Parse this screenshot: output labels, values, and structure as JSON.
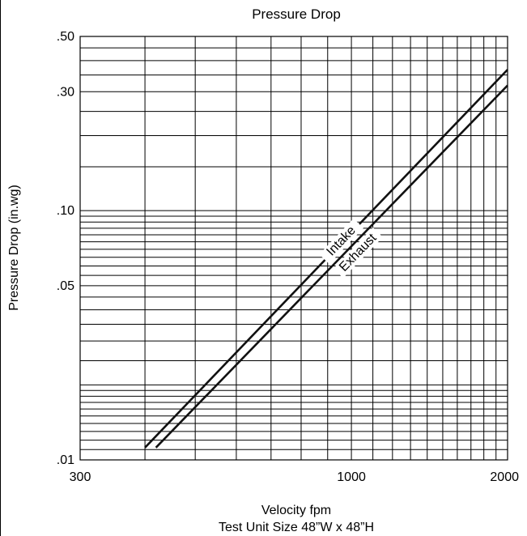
{
  "chart_data": {
    "type": "line",
    "title": "Pressure Drop",
    "xlabel": "Velocity fpm",
    "subtitle": "Test Unit Size 48”W x 48”H",
    "ylabel": "Pressure Drop (in.wg)",
    "x_scale": "log",
    "y_scale": "log",
    "xlim": [
      300,
      2000
    ],
    "ylim": [
      0.01,
      0.5
    ],
    "grid": true,
    "x_ticks": [
      {
        "value": 300,
        "label": "300"
      },
      {
        "value": 1000,
        "label": "1000"
      },
      {
        "value": 2000,
        "label": "2000"
      }
    ],
    "y_ticks": [
      {
        "value": 0.01,
        "label": ".01"
      },
      {
        "value": 0.05,
        "label": ".05"
      },
      {
        "value": 0.1,
        "label": ".10"
      },
      {
        "value": 0.3,
        "label": ".30"
      },
      {
        "value": 0.5,
        "label": ".50"
      }
    ],
    "series": [
      {
        "name": "Intake",
        "x": [
          400,
          2000
        ],
        "y": [
          0.0112,
          0.368
        ]
      },
      {
        "name": "Exhaust",
        "x": [
          420,
          2000
        ],
        "y": [
          0.0112,
          0.318
        ]
      }
    ]
  }
}
